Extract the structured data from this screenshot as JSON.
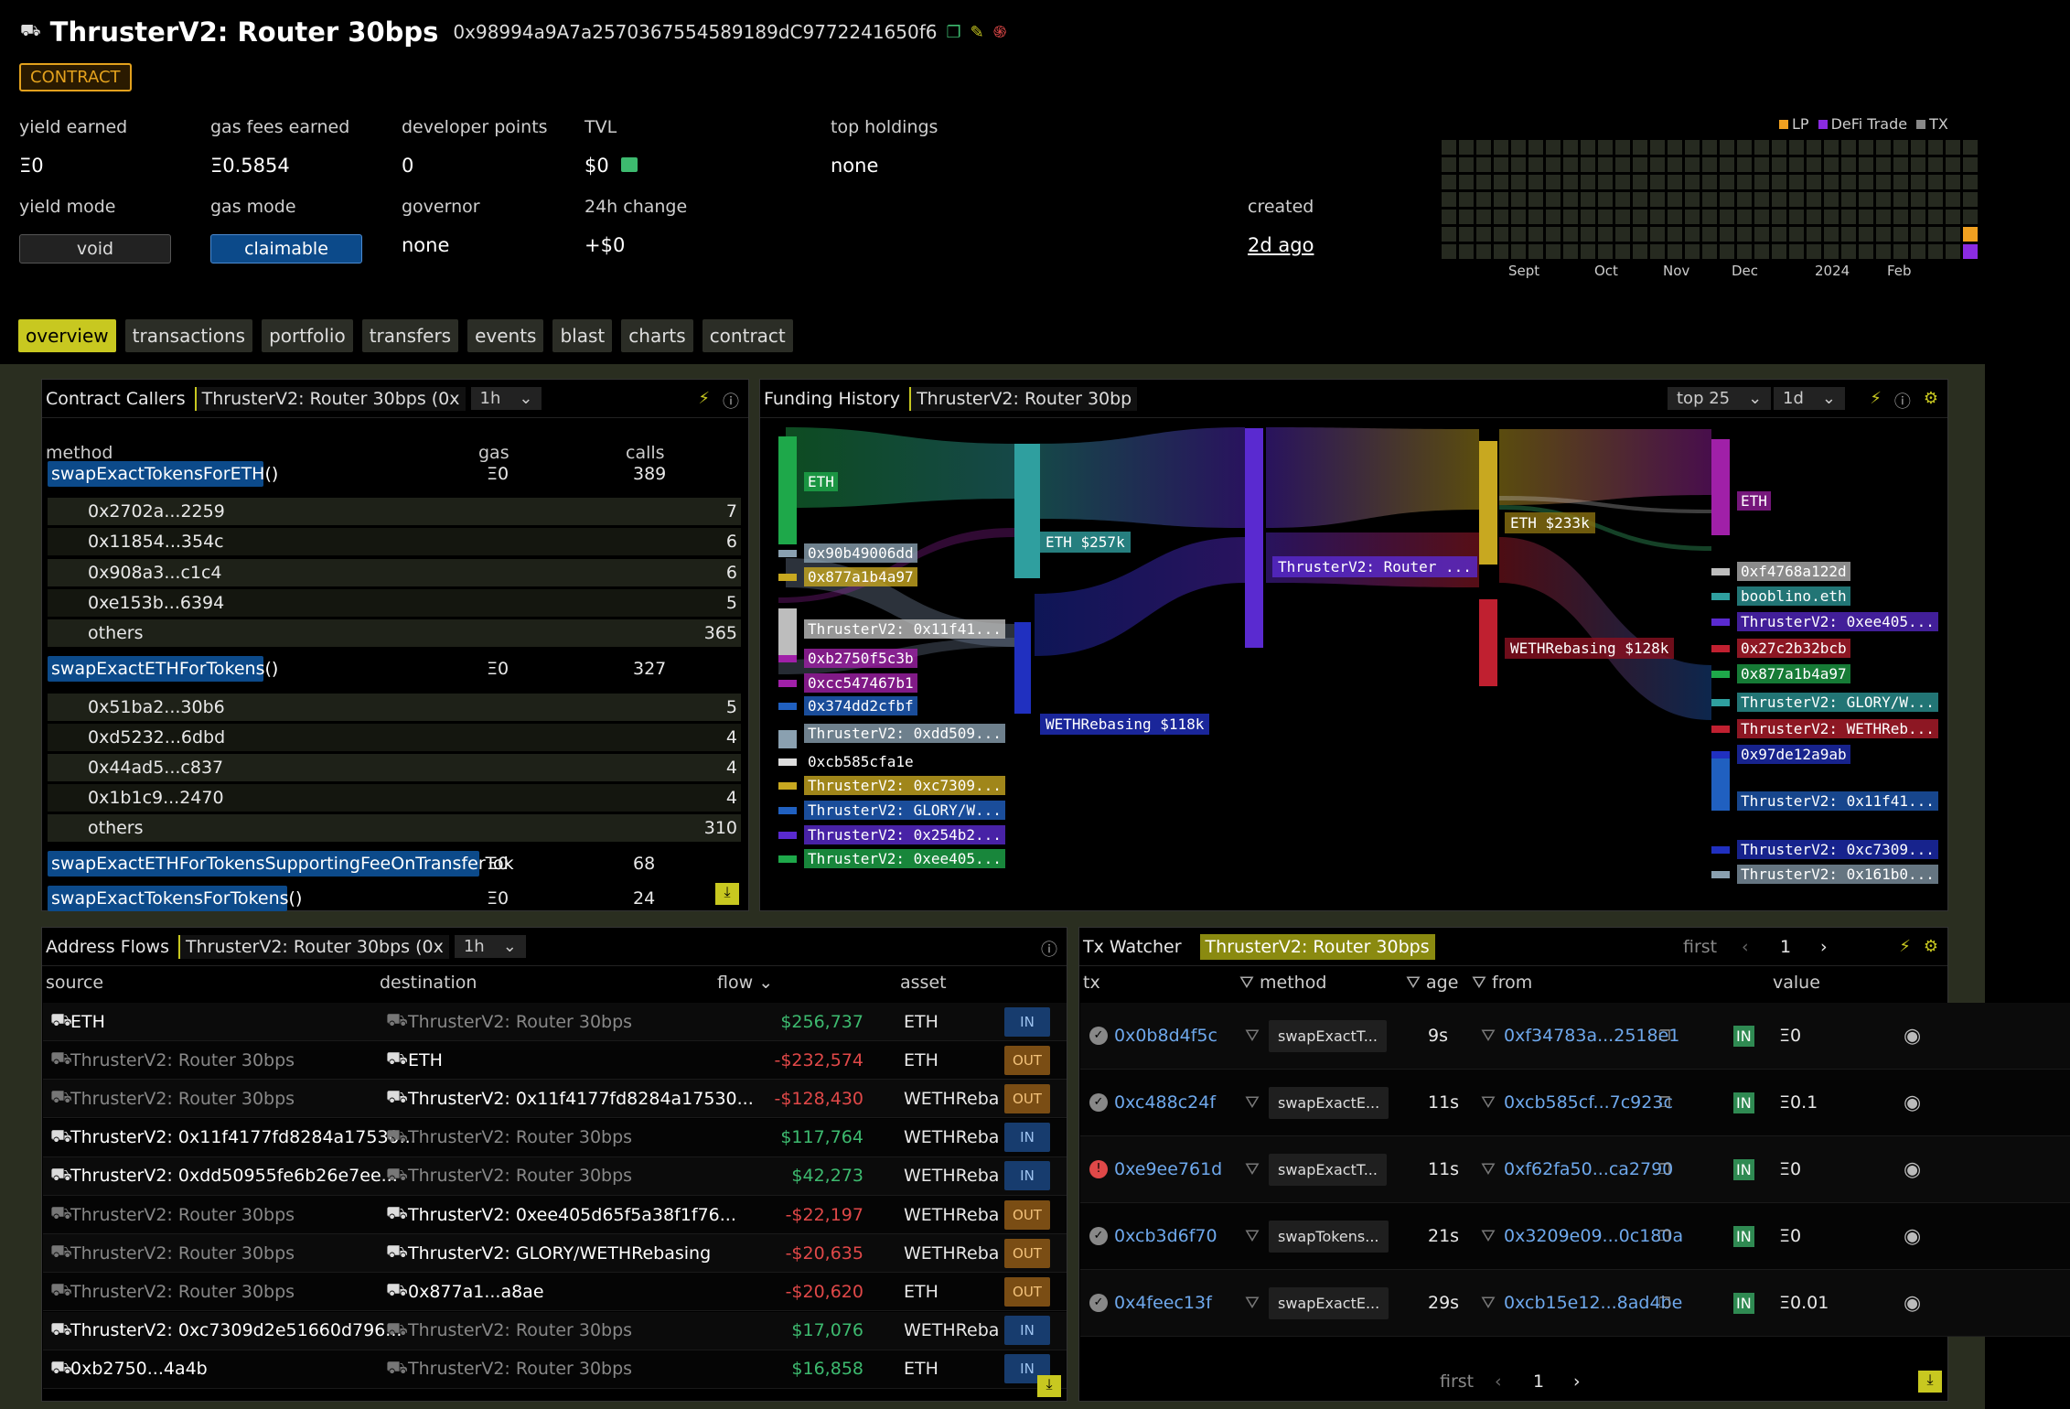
{
  "header": {
    "title": "ThrusterV2: Router 30bps",
    "address": "0x98994a9A7a2570367554589189dC9772241650f6",
    "badge": "CONTRACT"
  },
  "stats": {
    "yield_earned": {
      "label": "yield earned",
      "value": "Ξ0"
    },
    "gas_fees": {
      "label": "gas fees earned",
      "value": "Ξ0.5854"
    },
    "dev_points": {
      "label": "developer points",
      "value": "0"
    },
    "tvl": {
      "label": "TVL",
      "value": "$0"
    },
    "top_holdings": {
      "label": "top holdings",
      "value": "none"
    },
    "yield_mode": {
      "label": "yield mode",
      "value": "void"
    },
    "gas_mode": {
      "label": "gas mode",
      "value": "claimable"
    },
    "governor": {
      "label": "governor",
      "value": "none"
    },
    "change": {
      "label": "24h change",
      "value": "+$0"
    },
    "created": {
      "label": "created",
      "value": "2d ago"
    }
  },
  "activity": {
    "legend": [
      "LP",
      "DeFi Trade",
      "TX"
    ],
    "legend_colors": [
      "#f0a020",
      "#8a2be2",
      "#888888"
    ],
    "months": [
      "Sept",
      "Oct",
      "Nov",
      "Dec",
      "2024",
      "Feb"
    ]
  },
  "tabs": [
    "overview",
    "transactions",
    "portfolio",
    "transfers",
    "events",
    "blast",
    "charts",
    "contract"
  ],
  "callers": {
    "title": "Contract Callers",
    "chip": "ThrusterV2: Router 30bps (0x",
    "range": "1h",
    "cols": [
      "method",
      "gas",
      "calls"
    ],
    "groups": [
      {
        "method": "swapExactTokensForETH()",
        "gas": "Ξ0",
        "calls": "389",
        "subs": [
          [
            "0x2702a...2259",
            "7"
          ],
          [
            "0x11854...354c",
            "6"
          ],
          [
            "0x908a3...c1c4",
            "6"
          ],
          [
            "0xe153b...6394",
            "5"
          ],
          [
            "others",
            "365"
          ]
        ]
      },
      {
        "method": "swapExactETHForTokens()",
        "gas": "Ξ0",
        "calls": "327",
        "subs": [
          [
            "0x51ba2...30b6",
            "5"
          ],
          [
            "0xd5232...6dbd",
            "4"
          ],
          [
            "0x44ad5...c837",
            "4"
          ],
          [
            "0x1b1c9...2470",
            "4"
          ],
          [
            "others",
            "310"
          ]
        ]
      }
    ],
    "extra": [
      {
        "method": "swapExactETHForTokensSupportingFeeOnTransferTok",
        "gas": "Ξ0",
        "calls": "68"
      },
      {
        "method": "swapExactTokensForTokens()",
        "gas": "Ξ0",
        "calls": "24"
      }
    ]
  },
  "funding": {
    "title": "Funding History",
    "chip": "ThrusterV2: Router 30bp",
    "top": "top 25",
    "range": "1d",
    "left_nodes": [
      "ETH",
      "0x90b49006dd",
      "0x877a1b4a97",
      "ThrusterV2: 0x11f41...",
      "0xb2750f5c3b",
      "0xcc547467b1",
      "0x374dd2cfbf",
      "ThrusterV2: 0xdd509...",
      "0xcb585cfa1e",
      "ThrusterV2: 0xc7309...",
      "ThrusterV2: GLORY/W...",
      "ThrusterV2: 0x254b2...",
      "ThrusterV2: 0xee405..."
    ],
    "mid1": [
      "ETH $257k",
      "WETHRebasing $118k"
    ],
    "center": "ThrusterV2: Router ...",
    "mid2": [
      "ETH $233k",
      "WETHRebasing $128k"
    ],
    "right_nodes": [
      "ETH",
      "0xf4768a122d",
      "booblino.eth",
      "ThrusterV2: 0xee405...",
      "0x27c2b32bcb",
      "0x877a1b4a97",
      "ThrusterV2: GLORY/W...",
      "ThrusterV2: WETHReb...",
      "0x97de12a9ab",
      "ThrusterV2: 0x11f41...",
      "ThrusterV2: 0xc7309...",
      "ThrusterV2: 0x161b0..."
    ]
  },
  "flows": {
    "title": "Address Flows",
    "chip": "ThrusterV2: Router 30bps (0x",
    "range": "1h",
    "cols": [
      "source",
      "destination",
      "flow",
      "asset"
    ],
    "rows": [
      {
        "src": "ETH",
        "dst": "ThrusterV2: Router 30bps",
        "flow": "$256,737",
        "asset": "ETH",
        "dir": "IN",
        "neg": false,
        "srcm": false,
        "dstm": true
      },
      {
        "src": "ThrusterV2: Router 30bps",
        "dst": "ETH",
        "flow": "-$232,574",
        "asset": "ETH",
        "dir": "OUT",
        "neg": true,
        "srcm": true,
        "dstm": false
      },
      {
        "src": "ThrusterV2: Router 30bps",
        "dst": "ThrusterV2: 0x11f4177fd8284a17530...",
        "flow": "-$128,430",
        "asset": "WETHReba",
        "dir": "OUT",
        "neg": true,
        "srcm": true,
        "dstm": false
      },
      {
        "src": "ThrusterV2: 0x11f4177fd8284a17530...",
        "dst": "ThrusterV2: Router 30bps",
        "flow": "$117,764",
        "asset": "WETHReba",
        "dir": "IN",
        "neg": false,
        "srcm": false,
        "dstm": true
      },
      {
        "src": "ThrusterV2: 0xdd50955fe6b26e7ee...",
        "dst": "ThrusterV2: Router 30bps",
        "flow": "$42,273",
        "asset": "WETHReba",
        "dir": "IN",
        "neg": false,
        "srcm": false,
        "dstm": true
      },
      {
        "src": "ThrusterV2: Router 30bps",
        "dst": "ThrusterV2: 0xee405d65f5a38f1f76...",
        "flow": "-$22,197",
        "asset": "WETHReba",
        "dir": "OUT",
        "neg": true,
        "srcm": true,
        "dstm": false
      },
      {
        "src": "ThrusterV2: Router 30bps",
        "dst": "ThrusterV2: GLORY/WETHRebasing",
        "flow": "-$20,635",
        "asset": "WETHReba",
        "dir": "OUT",
        "neg": true,
        "srcm": true,
        "dstm": false
      },
      {
        "src": "ThrusterV2: Router 30bps",
        "dst": "0x877a1...a8ae",
        "flow": "-$20,620",
        "asset": "ETH",
        "dir": "OUT",
        "neg": true,
        "srcm": true,
        "dstm": false
      },
      {
        "src": "ThrusterV2: 0xc7309d2e51660d796...",
        "dst": "ThrusterV2: Router 30bps",
        "flow": "$17,076",
        "asset": "WETHReba",
        "dir": "IN",
        "neg": false,
        "srcm": false,
        "dstm": true
      },
      {
        "src": "0xb2750...4a4b",
        "dst": "ThrusterV2: Router 30bps",
        "flow": "$16,858",
        "asset": "ETH",
        "dir": "IN",
        "neg": false,
        "srcm": false,
        "dstm": true
      }
    ]
  },
  "watcher": {
    "title": "Tx Watcher",
    "chip": "ThrusterV2: Router 30bps",
    "first": "first",
    "page": "1",
    "cols": [
      "tx",
      "method",
      "age",
      "from",
      "value"
    ],
    "rows": [
      {
        "tx": "0x0b8d4f5c",
        "method": "swapExactT...",
        "age": "9s",
        "from": "0xf34783a...2518e1",
        "dir": "IN",
        "value": "Ξ0",
        "err": false
      },
      {
        "tx": "0xc488c24f",
        "method": "swapExactE...",
        "age": "11s",
        "from": "0xcb585cf...7c923c",
        "dir": "IN",
        "value": "Ξ0.1",
        "err": false
      },
      {
        "tx": "0xe9ee761d",
        "method": "swapExactT...",
        "age": "11s",
        "from": "0xf62fa50...ca2790",
        "dir": "IN",
        "value": "Ξ0",
        "err": true
      },
      {
        "tx": "0xcb3d6f70",
        "method": "swapTokens...",
        "age": "21s",
        "from": "0x3209e09...0c180a",
        "dir": "IN",
        "value": "Ξ0",
        "err": false
      },
      {
        "tx": "0x4feec13f",
        "method": "swapExactE...",
        "age": "29s",
        "from": "0xcb15e12...8ad4be",
        "dir": "IN",
        "value": "Ξ0.01",
        "err": false
      }
    ]
  }
}
